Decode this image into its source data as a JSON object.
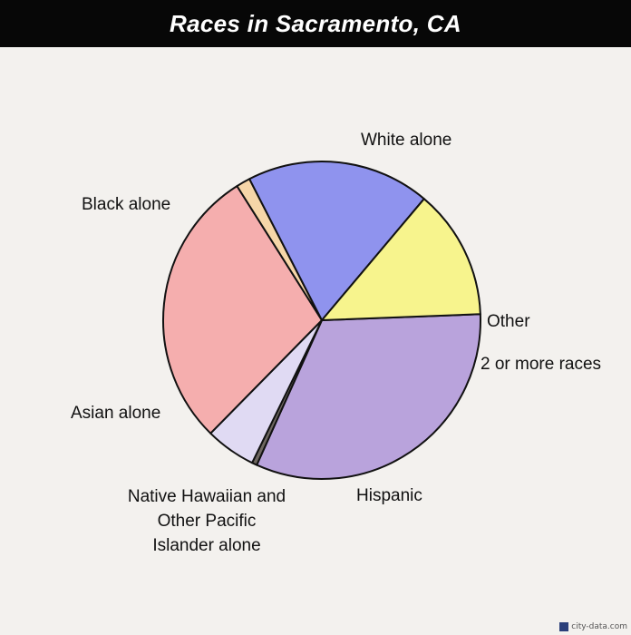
{
  "title": "Races in Sacramento, CA",
  "credit": "city-data.com",
  "colors": {
    "background": "#f3f1ee",
    "title_bar": "#070707",
    "outline": "#111111"
  },
  "chart_data": {
    "type": "pie",
    "title": "Races in Sacramento, CA",
    "slices": [
      {
        "label": "White alone",
        "value": 31.5,
        "color": "#b9a3dc"
      },
      {
        "label": "Other",
        "value": 0.5,
        "color": "#6e6760"
      },
      {
        "label": "2 or more races",
        "value": 5.0,
        "color": "#e0daf3"
      },
      {
        "label": "Hispanic",
        "value": 27.9,
        "color": "#f5aeae"
      },
      {
        "label": "Native Hawaiian and Other Pacific Islander alone",
        "value": 1.4,
        "color": "#f6d6a8"
      },
      {
        "label": "Asian alone",
        "value": 18.2,
        "color": "#8f93ee"
      },
      {
        "label": "Black alone",
        "value": 12.9,
        "color": "#f7f48d"
      }
    ]
  }
}
